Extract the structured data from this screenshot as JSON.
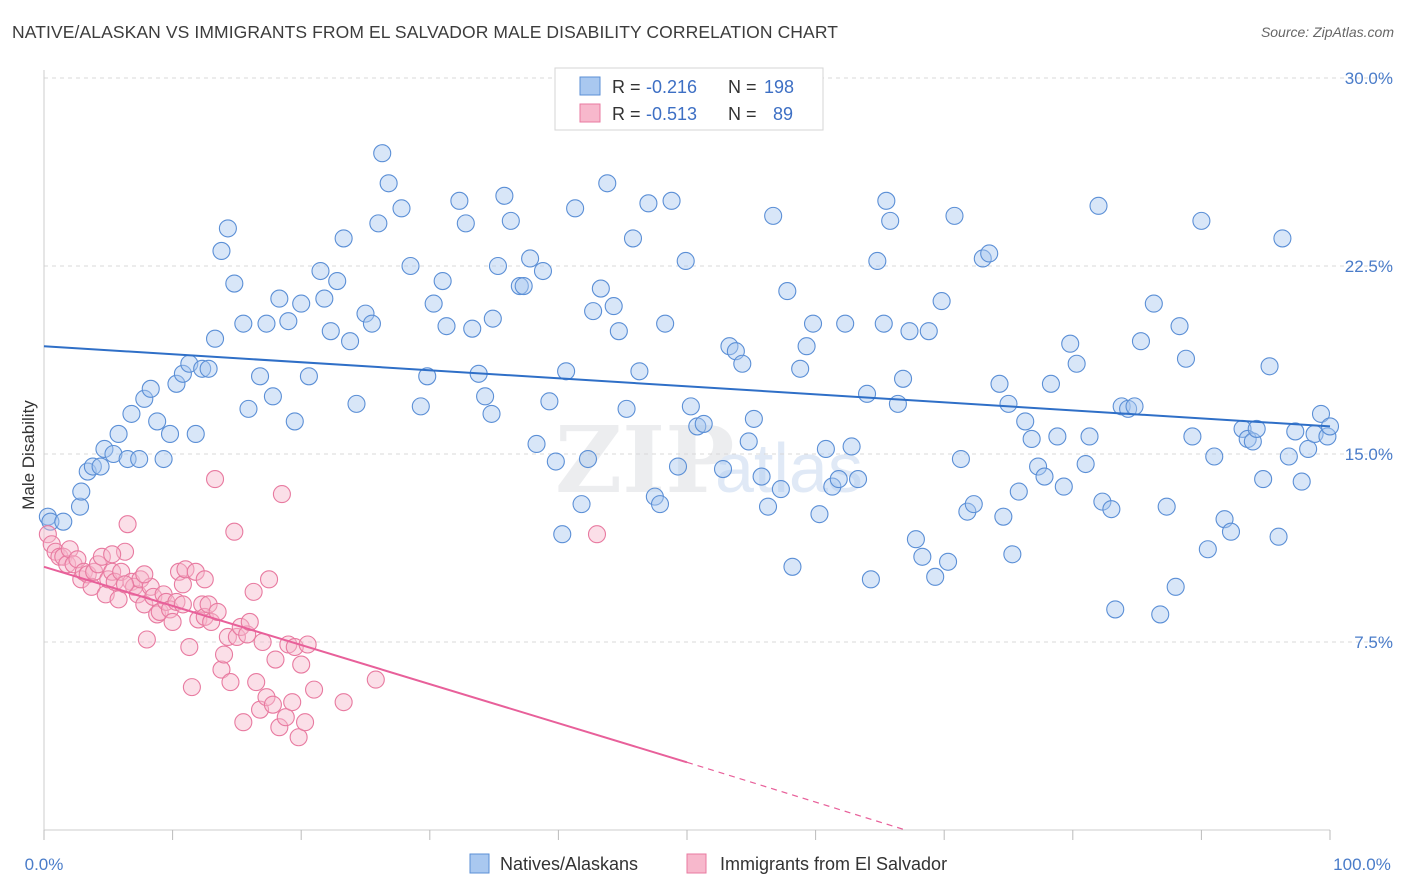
{
  "title": "NATIVE/ALASKAN VS IMMIGRANTS FROM EL SALVADOR MALE DISABILITY CORRELATION CHART",
  "source": "Source: ZipAtlas.com",
  "watermark": {
    "zip": "ZIP",
    "atlas": "atlas"
  },
  "legend": {
    "row1": {
      "r_label": "R =",
      "r_value": "-0.216",
      "n_label": "N =",
      "n_value": "198"
    },
    "row2": {
      "r_label": "R =",
      "r_value": "-0.513",
      "n_label": "N =",
      "n_value": "89"
    }
  },
  "bottom_legend": {
    "series1": "Natives/Alaskans",
    "series2": "Immigrants from El Salvador"
  },
  "colors": {
    "blue_fill": "#a9c8f0",
    "blue_stroke": "#5b8fd6",
    "blue_line": "#2f6fc7",
    "pink_fill": "#f7b8cc",
    "pink_stroke": "#e87aa0",
    "pink_line": "#e8609a",
    "grid": "#d8d8d8",
    "tick_text": "#4a7cc9"
  },
  "chart_data": {
    "type": "scatter",
    "title": "NATIVE/ALASKAN VS IMMIGRANTS FROM EL SALVADOR MALE DISABILITY CORRELATION CHART",
    "xlabel": "",
    "ylabel": "Male Disability",
    "xlim": [
      0,
      100
    ],
    "ylim": [
      0,
      30
    ],
    "x_tick_labels": [
      "0.0%",
      "100.0%"
    ],
    "y_ticks": [
      7.5,
      15.0,
      22.5,
      30.0
    ],
    "y_tick_labels": [
      "7.5%",
      "15.0%",
      "22.5%",
      "30.0%"
    ],
    "grid": true,
    "legend_position": "top-center",
    "series": [
      {
        "name": "Natives/Alaskans",
        "r": -0.216,
        "n": 198,
        "trend": {
          "x": [
            0,
            100
          ],
          "y": [
            19.3,
            16.1
          ]
        },
        "points": [
          [
            0.3,
            12.5
          ],
          [
            0.5,
            12.3
          ],
          [
            1.5,
            12.3
          ],
          [
            2.8,
            12.9
          ],
          [
            2.9,
            13.5
          ],
          [
            3.4,
            14.3
          ],
          [
            3.8,
            14.5
          ],
          [
            4.4,
            14.5
          ],
          [
            4.7,
            15.2
          ],
          [
            5.4,
            15.0
          ],
          [
            5.8,
            15.8
          ],
          [
            6.5,
            14.8
          ],
          [
            6.8,
            16.6
          ],
          [
            7.4,
            14.8
          ],
          [
            7.8,
            17.2
          ],
          [
            8.3,
            17.6
          ],
          [
            8.8,
            16.3
          ],
          [
            9.3,
            14.8
          ],
          [
            9.8,
            15.8
          ],
          [
            10.3,
            17.8
          ],
          [
            10.8,
            18.2
          ],
          [
            11.3,
            18.6
          ],
          [
            11.8,
            15.8
          ],
          [
            12.3,
            18.4
          ],
          [
            12.8,
            18.4
          ],
          [
            13.3,
            19.6
          ],
          [
            13.8,
            23.1
          ],
          [
            14.3,
            24.0
          ],
          [
            14.8,
            21.8
          ],
          [
            15.5,
            20.2
          ],
          [
            15.9,
            16.8
          ],
          [
            16.8,
            18.1
          ],
          [
            17.3,
            20.2
          ],
          [
            17.8,
            17.3
          ],
          [
            18.3,
            21.2
          ],
          [
            19.0,
            20.3
          ],
          [
            19.5,
            16.3
          ],
          [
            20.0,
            21.0
          ],
          [
            20.6,
            18.1
          ],
          [
            21.5,
            22.3
          ],
          [
            21.8,
            21.2
          ],
          [
            22.3,
            19.9
          ],
          [
            22.8,
            21.9
          ],
          [
            23.3,
            23.6
          ],
          [
            23.8,
            19.5
          ],
          [
            24.3,
            17.0
          ],
          [
            25.0,
            20.6
          ],
          [
            25.5,
            20.2
          ],
          [
            26.0,
            24.2
          ],
          [
            26.3,
            27.0
          ],
          [
            26.8,
            25.8
          ],
          [
            27.8,
            24.8
          ],
          [
            28.5,
            22.5
          ],
          [
            29.3,
            16.9
          ],
          [
            29.8,
            18.1
          ],
          [
            30.3,
            21.0
          ],
          [
            31.0,
            21.9
          ],
          [
            31.3,
            20.1
          ],
          [
            32.3,
            25.1
          ],
          [
            32.8,
            24.2
          ],
          [
            33.3,
            20.0
          ],
          [
            33.8,
            18.2
          ],
          [
            34.3,
            17.3
          ],
          [
            34.8,
            16.6
          ],
          [
            34.9,
            20.4
          ],
          [
            35.3,
            22.5
          ],
          [
            35.8,
            25.3
          ],
          [
            36.3,
            24.3
          ],
          [
            37.0,
            21.7
          ],
          [
            37.3,
            21.7
          ],
          [
            37.8,
            22.8
          ],
          [
            38.3,
            15.4
          ],
          [
            38.8,
            22.3
          ],
          [
            39.3,
            17.1
          ],
          [
            39.8,
            14.7
          ],
          [
            40.3,
            11.8
          ],
          [
            40.6,
            18.3
          ],
          [
            41.3,
            24.8
          ],
          [
            41.8,
            13.0
          ],
          [
            42.3,
            14.8
          ],
          [
            42.7,
            20.7
          ],
          [
            43.3,
            21.6
          ],
          [
            43.8,
            25.8
          ],
          [
            44.3,
            20.9
          ],
          [
            44.7,
            19.9
          ],
          [
            45.3,
            16.8
          ],
          [
            45.8,
            23.6
          ],
          [
            46.3,
            18.3
          ],
          [
            47.0,
            25.0
          ],
          [
            47.5,
            13.3
          ],
          [
            47.9,
            13.0
          ],
          [
            48.3,
            20.2
          ],
          [
            48.8,
            25.1
          ],
          [
            49.3,
            14.5
          ],
          [
            49.9,
            22.7
          ],
          [
            50.3,
            16.9
          ],
          [
            50.8,
            16.1
          ],
          [
            51.3,
            16.2
          ],
          [
            51.8,
            29.0
          ],
          [
            52.8,
            14.4
          ],
          [
            53.3,
            19.3
          ],
          [
            53.8,
            19.1
          ],
          [
            54.3,
            18.6
          ],
          [
            54.8,
            15.5
          ],
          [
            55.2,
            16.4
          ],
          [
            55.8,
            14.1
          ],
          [
            56.3,
            12.9
          ],
          [
            56.7,
            24.5
          ],
          [
            57.3,
            13.6
          ],
          [
            57.8,
            21.5
          ],
          [
            58.2,
            10.5
          ],
          [
            58.8,
            18.4
          ],
          [
            59.3,
            19.3
          ],
          [
            59.8,
            20.2
          ],
          [
            60.3,
            12.6
          ],
          [
            60.8,
            15.2
          ],
          [
            61.3,
            13.7
          ],
          [
            61.8,
            14.0
          ],
          [
            62.3,
            20.2
          ],
          [
            62.8,
            15.3
          ],
          [
            63.3,
            14.0
          ],
          [
            64.0,
            17.4
          ],
          [
            64.3,
            10.0
          ],
          [
            64.8,
            22.7
          ],
          [
            65.3,
            20.2
          ],
          [
            65.8,
            24.3
          ],
          [
            66.4,
            17.0
          ],
          [
            66.8,
            18.0
          ],
          [
            67.3,
            19.9
          ],
          [
            67.8,
            11.6
          ],
          [
            68.3,
            10.9
          ],
          [
            68.8,
            19.9
          ],
          [
            69.3,
            10.1
          ],
          [
            69.8,
            21.1
          ],
          [
            70.3,
            10.7
          ],
          [
            70.8,
            24.5
          ],
          [
            71.3,
            14.8
          ],
          [
            71.8,
            12.7
          ],
          [
            72.3,
            13.0
          ],
          [
            73.0,
            22.8
          ],
          [
            73.5,
            23.0
          ],
          [
            74.3,
            17.8
          ],
          [
            74.6,
            12.5
          ],
          [
            75.0,
            17.0
          ],
          [
            75.3,
            11.0
          ],
          [
            75.8,
            13.5
          ],
          [
            76.3,
            16.3
          ],
          [
            76.8,
            15.6
          ],
          [
            77.3,
            14.5
          ],
          [
            77.8,
            14.1
          ],
          [
            78.3,
            17.8
          ],
          [
            78.8,
            15.7
          ],
          [
            79.3,
            13.7
          ],
          [
            79.8,
            19.4
          ],
          [
            80.3,
            18.6
          ],
          [
            81.0,
            14.6
          ],
          [
            81.3,
            15.7
          ],
          [
            82.0,
            24.9
          ],
          [
            82.3,
            13.1
          ],
          [
            83.0,
            12.8
          ],
          [
            83.3,
            8.8
          ],
          [
            83.8,
            16.9
          ],
          [
            84.3,
            16.8
          ],
          [
            84.8,
            16.9
          ],
          [
            85.3,
            19.5
          ],
          [
            86.3,
            21.0
          ],
          [
            86.8,
            8.6
          ],
          [
            87.3,
            12.9
          ],
          [
            88.0,
            9.7
          ],
          [
            88.3,
            20.1
          ],
          [
            88.8,
            18.8
          ],
          [
            89.3,
            15.7
          ],
          [
            90.0,
            24.3
          ],
          [
            90.5,
            11.2
          ],
          [
            91.0,
            14.9
          ],
          [
            91.8,
            12.4
          ],
          [
            92.3,
            11.9
          ],
          [
            93.2,
            16.0
          ],
          [
            93.6,
            15.6
          ],
          [
            94.0,
            15.5
          ],
          [
            94.3,
            16.0
          ],
          [
            94.8,
            14.0
          ],
          [
            95.3,
            18.5
          ],
          [
            96.0,
            11.7
          ],
          [
            96.3,
            23.6
          ],
          [
            96.8,
            14.9
          ],
          [
            97.3,
            15.9
          ],
          [
            97.8,
            13.9
          ],
          [
            98.3,
            15.2
          ],
          [
            98.8,
            15.8
          ],
          [
            99.3,
            16.6
          ],
          [
            99.8,
            15.7
          ],
          [
            100.0,
            16.1
          ],
          [
            65.5,
            25.1
          ]
        ]
      },
      {
        "name": "Immigrants from El Salvador",
        "r": -0.513,
        "n": 89,
        "trend": {
          "x": [
            0,
            50
          ],
          "y": [
            10.5,
            2.7
          ]
        },
        "trend_dashed": {
          "x": [
            50,
            67
          ],
          "y": [
            2.7,
            0.0
          ]
        },
        "points": [
          [
            0.3,
            11.8
          ],
          [
            0.6,
            11.4
          ],
          [
            0.9,
            11.1
          ],
          [
            1.2,
            10.9
          ],
          [
            1.5,
            10.9
          ],
          [
            1.8,
            10.6
          ],
          [
            2.0,
            11.2
          ],
          [
            2.3,
            10.6
          ],
          [
            2.6,
            10.8
          ],
          [
            2.9,
            10.0
          ],
          [
            3.1,
            10.3
          ],
          [
            3.4,
            10.2
          ],
          [
            3.7,
            9.7
          ],
          [
            3.9,
            10.3
          ],
          [
            4.2,
            10.6
          ],
          [
            4.5,
            10.9
          ],
          [
            4.8,
            9.4
          ],
          [
            5.0,
            10.0
          ],
          [
            5.3,
            10.3
          ],
          [
            5.5,
            9.9
          ],
          [
            5.8,
            9.2
          ],
          [
            6.0,
            10.3
          ],
          [
            6.3,
            11.1
          ],
          [
            6.5,
            12.2
          ],
          [
            6.8,
            9.9
          ],
          [
            7.0,
            9.7
          ],
          [
            7.3,
            9.4
          ],
          [
            7.5,
            10.0
          ],
          [
            7.8,
            9.0
          ],
          [
            8.0,
            7.6
          ],
          [
            8.3,
            9.7
          ],
          [
            8.5,
            9.3
          ],
          [
            8.8,
            8.6
          ],
          [
            9.0,
            8.7
          ],
          [
            9.3,
            9.4
          ],
          [
            9.5,
            9.1
          ],
          [
            9.8,
            8.8
          ],
          [
            10.0,
            8.3
          ],
          [
            10.3,
            9.1
          ],
          [
            10.5,
            10.3
          ],
          [
            10.8,
            9.8
          ],
          [
            11.0,
            10.4
          ],
          [
            11.3,
            7.3
          ],
          [
            11.5,
            5.7
          ],
          [
            11.8,
            10.3
          ],
          [
            12.0,
            8.4
          ],
          [
            12.3,
            9.0
          ],
          [
            12.5,
            8.5
          ],
          [
            12.8,
            9.0
          ],
          [
            13.0,
            8.3
          ],
          [
            13.3,
            14.0
          ],
          [
            13.5,
            8.7
          ],
          [
            13.8,
            6.4
          ],
          [
            14.0,
            7.0
          ],
          [
            14.3,
            7.7
          ],
          [
            14.5,
            5.9
          ],
          [
            14.8,
            11.9
          ],
          [
            15.0,
            7.7
          ],
          [
            15.3,
            8.1
          ],
          [
            15.5,
            4.3
          ],
          [
            15.8,
            7.8
          ],
          [
            16.0,
            8.3
          ],
          [
            16.3,
            9.5
          ],
          [
            16.5,
            5.9
          ],
          [
            16.8,
            4.8
          ],
          [
            17.0,
            7.5
          ],
          [
            17.3,
            5.3
          ],
          [
            17.5,
            10.0
          ],
          [
            17.8,
            5.0
          ],
          [
            18.0,
            6.8
          ],
          [
            18.3,
            4.1
          ],
          [
            18.5,
            13.4
          ],
          [
            18.8,
            4.5
          ],
          [
            19.0,
            7.4
          ],
          [
            19.3,
            5.1
          ],
          [
            19.5,
            7.3
          ],
          [
            19.8,
            3.7
          ],
          [
            20.0,
            6.6
          ],
          [
            20.3,
            4.3
          ],
          [
            20.5,
            7.4
          ],
          [
            21.0,
            5.6
          ],
          [
            23.3,
            5.1
          ],
          [
            25.8,
            6.0
          ],
          [
            43.0,
            11.8
          ],
          [
            5.3,
            11.0
          ],
          [
            6.3,
            9.8
          ],
          [
            7.8,
            10.2
          ],
          [
            10.8,
            9.0
          ],
          [
            12.5,
            10.0
          ]
        ]
      }
    ]
  }
}
